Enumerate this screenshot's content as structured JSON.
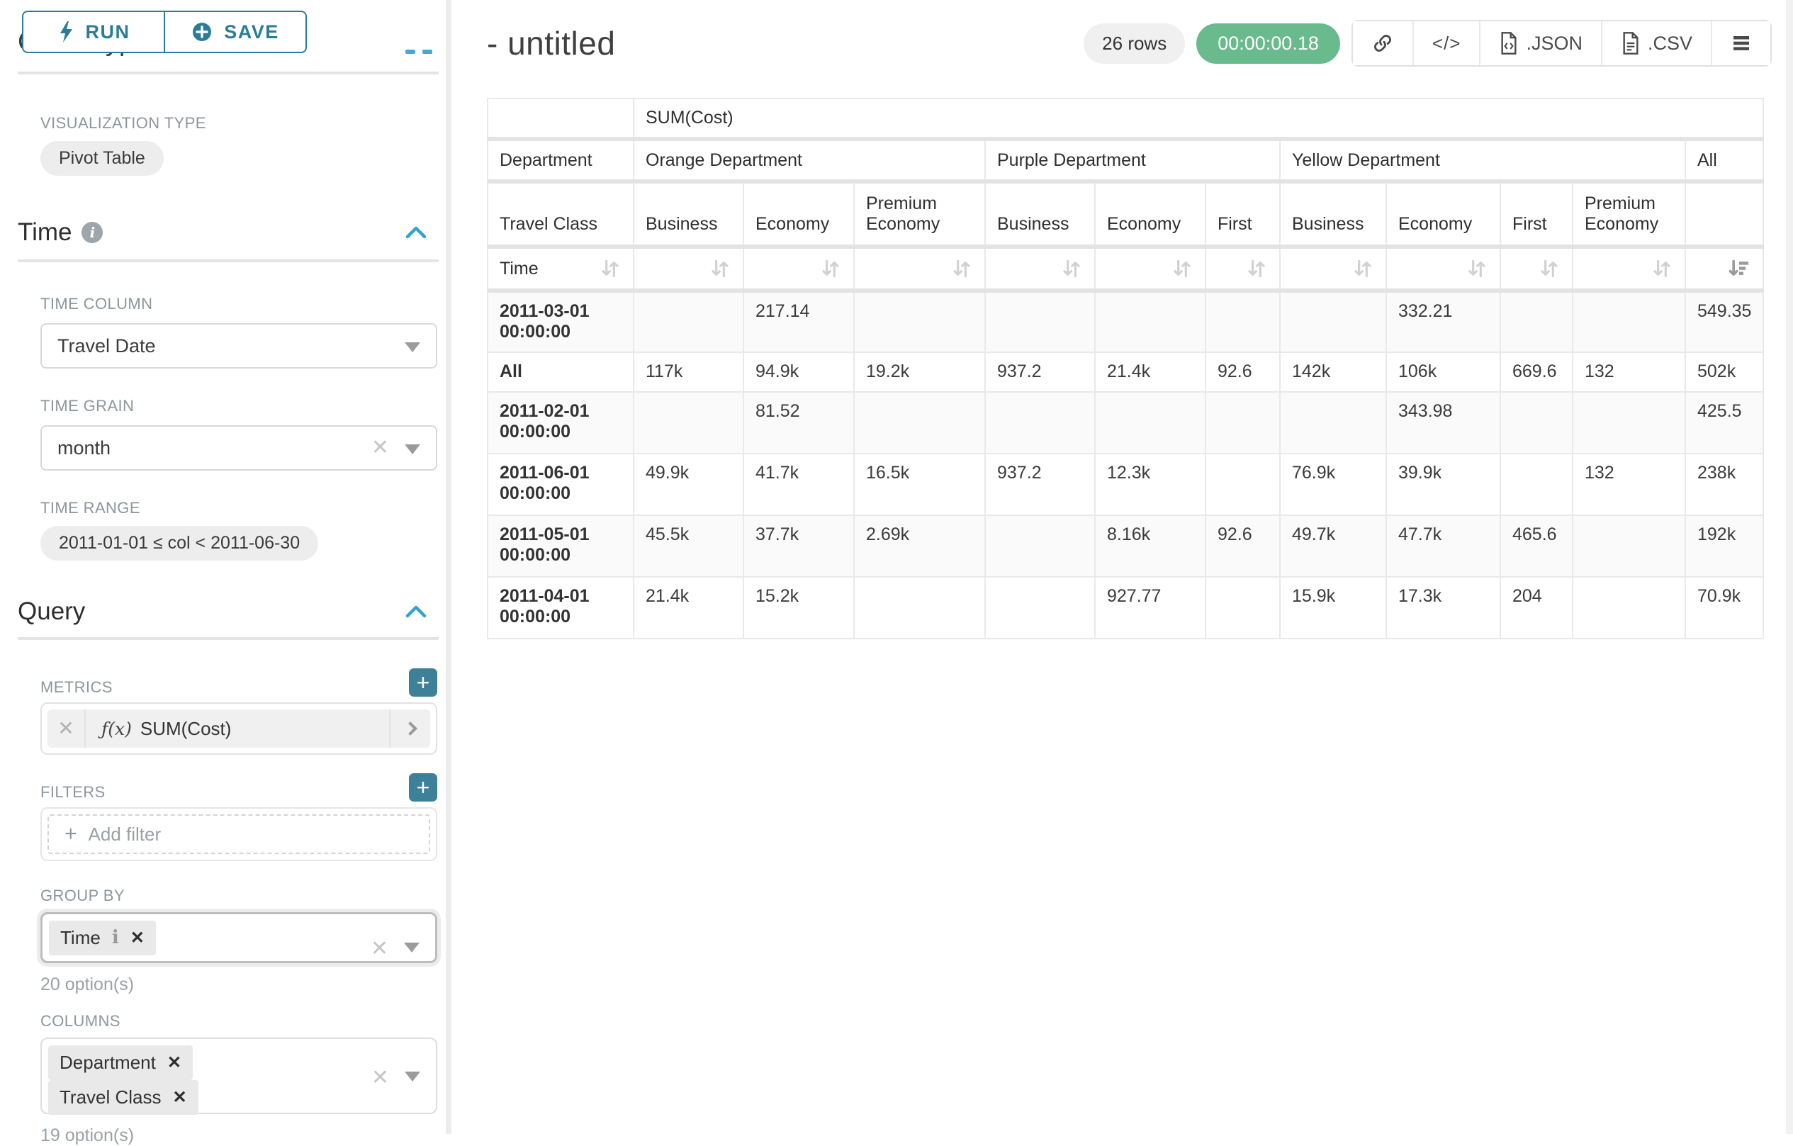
{
  "colors": {
    "accent_teal": "#2a7d99",
    "plus_button_teal": "#3e8098",
    "timer_badge_green": "#69ba8c",
    "section_chevron_blue": "#36a3cc",
    "table_border": "#e9e9e9",
    "zebra_row": "#fafafa"
  },
  "sidebar": {
    "run_label": "RUN",
    "save_label": "SAVE",
    "chart_type_heading": "Chart Type",
    "visualization": {
      "label": "VISUALIZATION TYPE",
      "value": "Pivot Table"
    },
    "time": {
      "title": "Time",
      "column_label": "TIME COLUMN",
      "column_value": "Travel Date",
      "grain_label": "TIME GRAIN",
      "grain_value": "month",
      "range_label": "TIME RANGE",
      "range_value": "2011-01-01 ≤ col < 2011-06-30"
    },
    "query": {
      "title": "Query",
      "metrics_label": "METRICS",
      "metric": {
        "fx": "ƒ(x)",
        "name": "SUM(Cost)"
      },
      "filters_label": "FILTERS",
      "add_filter": "Add filter",
      "group_by": {
        "label": "GROUP BY",
        "tags": [
          "Time"
        ],
        "options": "20 option(s)"
      },
      "columns": {
        "label": "COLUMNS",
        "tags": [
          "Department",
          "Travel Class"
        ],
        "options": "19 option(s)"
      }
    },
    "icons": [
      "lightning-icon",
      "circle-plus-icon",
      "info-icon",
      "chevron-up-icon",
      "dropdown-caret-icon",
      "clear-x-icon"
    ]
  },
  "main_header": {
    "title": "- untitled",
    "rows_badge": "26 rows",
    "timer_badge": "00:00:00.18",
    "export_json": ".JSON",
    "export_csv": ".CSV",
    "icons": [
      "link-icon",
      "code-icon",
      "file-icon",
      "menu-icon"
    ]
  },
  "chart_data": {
    "type": "table",
    "metric": "SUM(Cost)",
    "column_dimension": "Department",
    "sub_dimension": "Travel Class",
    "row_dimension": "Time",
    "column_groups": [
      {
        "label": "Orange Department",
        "cols": [
          "Business",
          "Economy",
          "Premium Economy"
        ]
      },
      {
        "label": "Purple Department",
        "cols": [
          "Business",
          "Economy",
          "First"
        ]
      },
      {
        "label": "Yellow Department",
        "cols": [
          "Business",
          "Economy",
          "First",
          "Premium Economy"
        ]
      },
      {
        "label": "All",
        "cols": [
          ""
        ]
      }
    ],
    "sort": {
      "active_column": "All",
      "direction": "desc"
    },
    "rows": [
      {
        "label": "2011-03-01 00:00:00",
        "values": [
          "",
          "217.14",
          "",
          "",
          "",
          "",
          "",
          "332.21",
          "",
          "",
          "549.35"
        ]
      },
      {
        "label": "All",
        "values": [
          "117k",
          "94.9k",
          "19.2k",
          "937.2",
          "21.4k",
          "92.6",
          "142k",
          "106k",
          "669.6",
          "132",
          "502k"
        ]
      },
      {
        "label": "2011-02-01 00:00:00",
        "values": [
          "",
          "81.52",
          "",
          "",
          "",
          "",
          "",
          "343.98",
          "",
          "",
          "425.5"
        ]
      },
      {
        "label": "2011-06-01 00:00:00",
        "values": [
          "49.9k",
          "41.7k",
          "16.5k",
          "937.2",
          "12.3k",
          "",
          "76.9k",
          "39.9k",
          "",
          "132",
          "238k"
        ]
      },
      {
        "label": "2011-05-01 00:00:00",
        "values": [
          "45.5k",
          "37.7k",
          "2.69k",
          "",
          "8.16k",
          "92.6",
          "49.7k",
          "47.7k",
          "465.6",
          "",
          "192k"
        ]
      },
      {
        "label": "2011-04-01 00:00:00",
        "values": [
          "21.4k",
          "15.2k",
          "",
          "",
          "927.77",
          "",
          "15.9k",
          "17.3k",
          "204",
          "",
          "70.9k"
        ]
      }
    ]
  }
}
